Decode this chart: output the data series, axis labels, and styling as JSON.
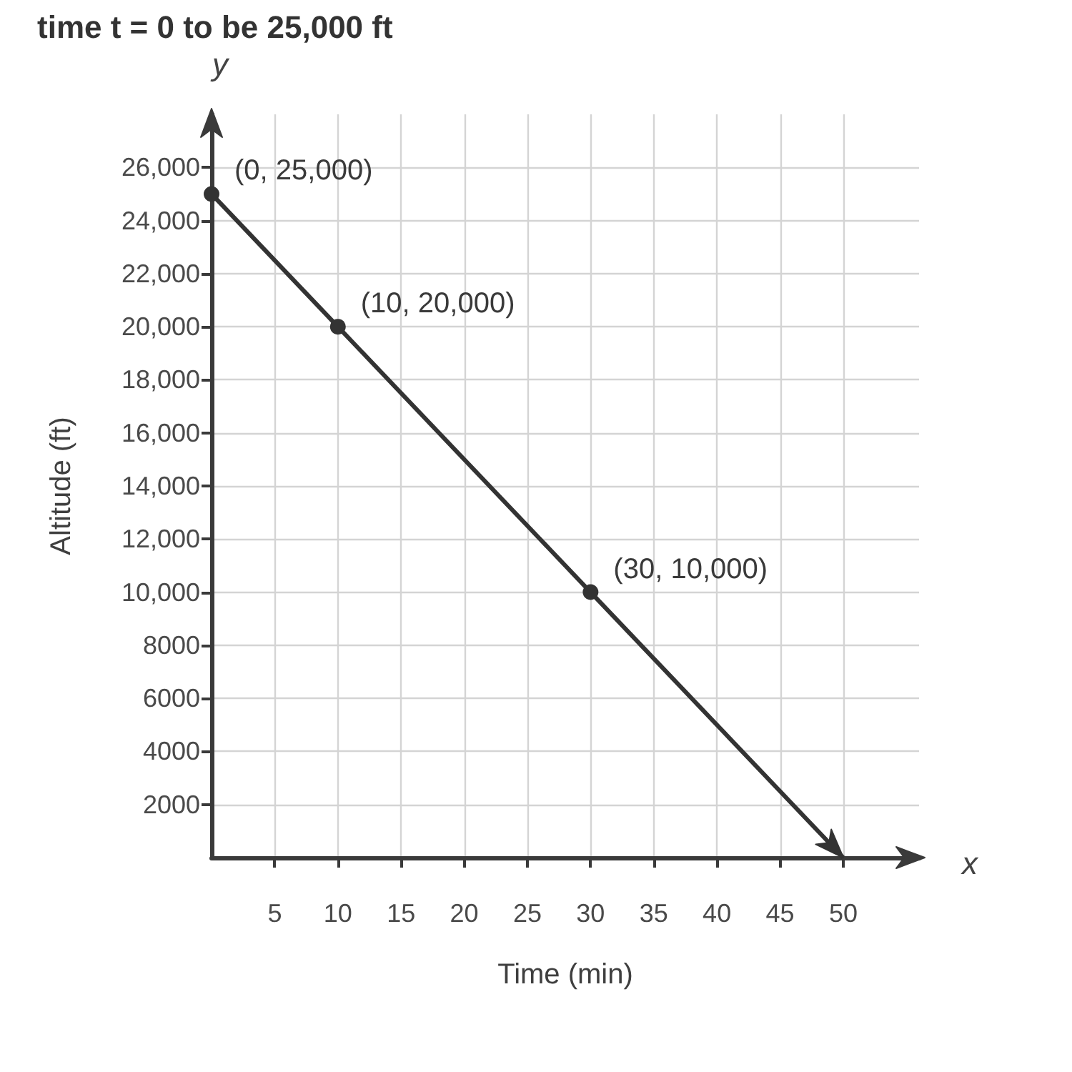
{
  "chart_data": {
    "type": "line",
    "xlabel": "Time (min)",
    "ylabel": "Altitude (ft)",
    "annotations": [
      "time t = 0 to be 25,000 ft",
      "y",
      "x",
      {
        "text": "(0, 25,000)",
        "x": 0,
        "y": 25000
      },
      {
        "text": "(10, 20,000)",
        "x": 10,
        "y": 20000
      },
      {
        "text": "(30, 10,000)",
        "x": 30,
        "y": 10000
      }
    ],
    "x": [
      0,
      10,
      30,
      50
    ],
    "values": [
      25000,
      20000,
      10000,
      0
    ],
    "color": "#333333",
    "xlim": [
      0,
      56
    ],
    "ylim": [
      0,
      28000
    ],
    "xticks": [
      5,
      10,
      15,
      20,
      25,
      30,
      35,
      40,
      45,
      50
    ],
    "yticks": [
      2000,
      4000,
      6000,
      8000,
      {
        "value": 10000,
        "label": "10,000"
      },
      {
        "value": 12000,
        "label": "12,000"
      },
      {
        "value": 14000,
        "label": "14,000"
      },
      {
        "value": 16000,
        "label": "16,000"
      },
      {
        "value": 18000,
        "label": "18,000"
      },
      {
        "value": 20000,
        "label": "20,000"
      },
      {
        "value": 22000,
        "label": "22,000"
      },
      {
        "value": 24000,
        "label": "24,000"
      },
      {
        "value": 26000,
        "label": "26,000"
      }
    ],
    "grid": true,
    "marker": "circle",
    "line_style": "solid"
  }
}
